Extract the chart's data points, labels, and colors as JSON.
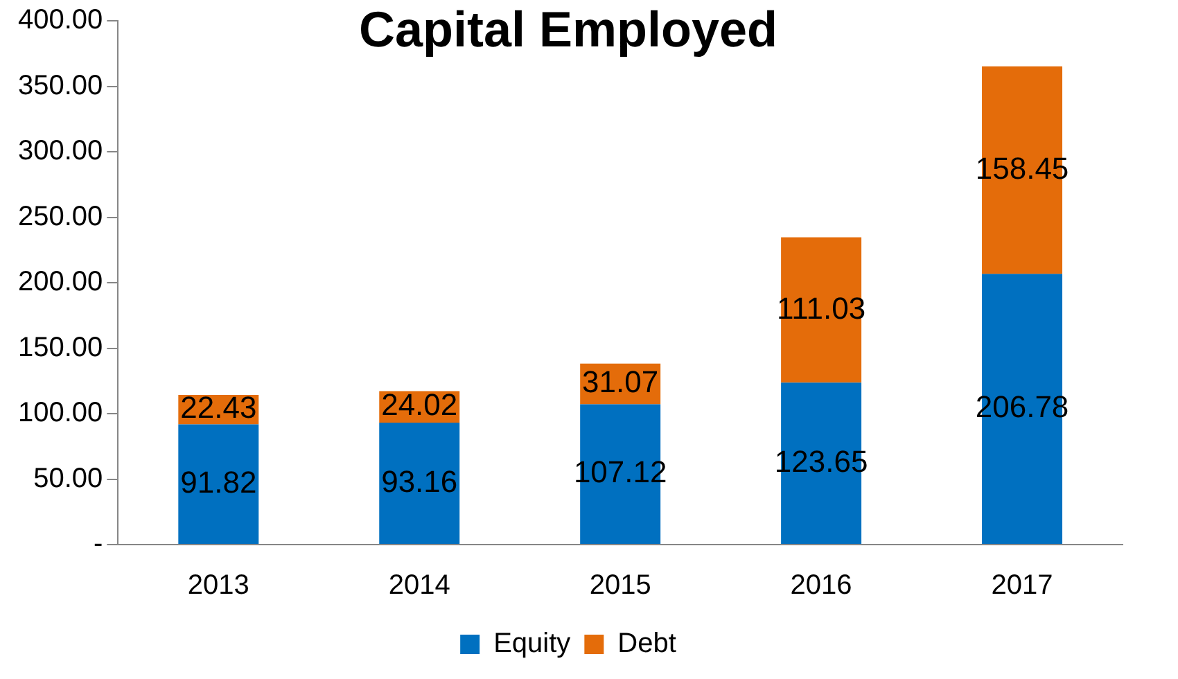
{
  "chart_data": {
    "type": "bar",
    "title": "Capital Employed",
    "categories": [
      "2013",
      "2014",
      "2015",
      "2016",
      "2017"
    ],
    "series": [
      {
        "name": "Equity",
        "color": "#0070c0",
        "values": [
          91.82,
          93.16,
          107.12,
          123.65,
          206.78
        ]
      },
      {
        "name": "Debt",
        "color": "#e46c0a",
        "values": [
          22.43,
          24.02,
          31.07,
          111.03,
          158.45
        ]
      }
    ],
    "stacked": true,
    "data_labels": true,
    "legend": "bottom",
    "ylim": [
      0,
      400
    ],
    "yticks": [
      {
        "value": 0,
        "label": "-"
      },
      {
        "value": 50,
        "label": "50.00"
      },
      {
        "value": 100,
        "label": "100.00"
      },
      {
        "value": 150,
        "label": "150.00"
      },
      {
        "value": 200,
        "label": "200.00"
      },
      {
        "value": 250,
        "label": "250.00"
      },
      {
        "value": 300,
        "label": "300.00"
      },
      {
        "value": 350,
        "label": "350.00"
      },
      {
        "value": 400,
        "label": "400.00"
      }
    ]
  }
}
